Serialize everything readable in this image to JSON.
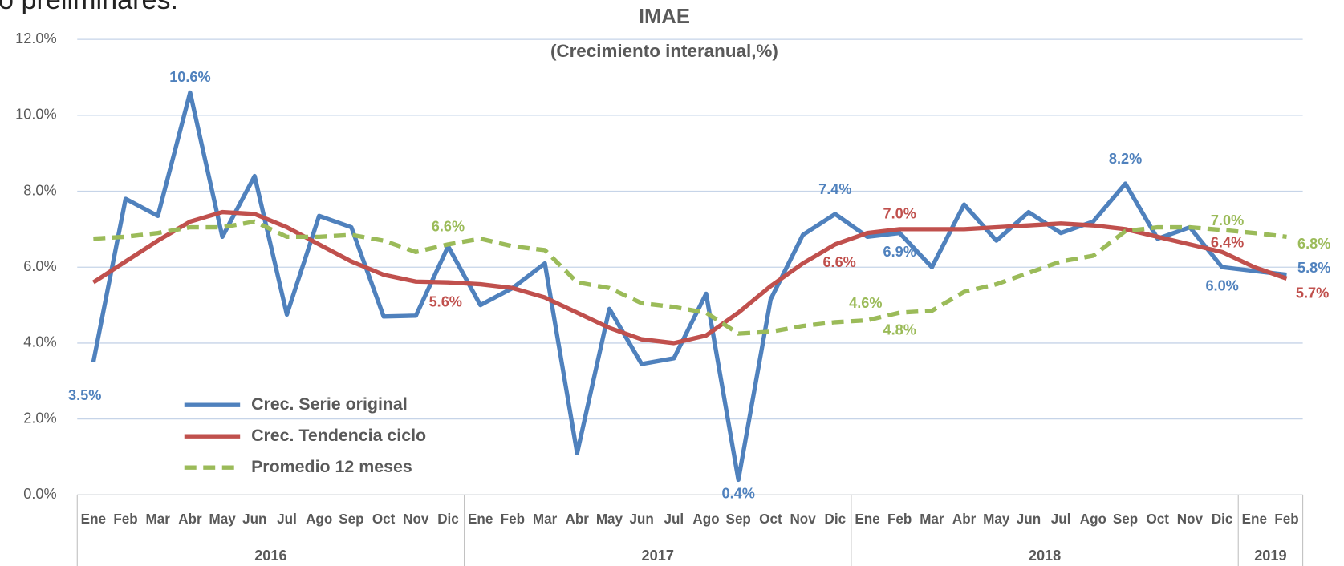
{
  "header_fragment": "o preliminares.",
  "chart_data": {
    "type": "line",
    "title": "IMAE",
    "subtitle": "(Crecimiento interanual,%)",
    "category_groups": [
      {
        "name": "2016",
        "categories": [
          "Ene",
          "Feb",
          "Mar",
          "Abr",
          "May",
          "Jun",
          "Jul",
          "Ago",
          "Sep",
          "Oct",
          "Nov",
          "Dic"
        ]
      },
      {
        "name": "2017",
        "categories": [
          "Ene",
          "Feb",
          "Mar",
          "Abr",
          "May",
          "Jun",
          "Jul",
          "Ago",
          "Sep",
          "Oct",
          "Nov",
          "Dic"
        ]
      },
      {
        "name": "2018",
        "categories": [
          "Ene",
          "Feb",
          "Mar",
          "Abr",
          "May",
          "Jun",
          "Jul",
          "Ago",
          "Sep",
          "Oct",
          "Nov",
          "Dic"
        ]
      },
      {
        "name": "2019",
        "categories": [
          "Ene",
          "Feb"
        ]
      }
    ],
    "ylim": [
      0,
      12
    ],
    "yticks": [
      {
        "value": 0,
        "label": "0.0%"
      },
      {
        "value": 2,
        "label": "2.0%"
      },
      {
        "value": 4,
        "label": "4.0%"
      },
      {
        "value": 6,
        "label": "6.0%"
      },
      {
        "value": 8,
        "label": "8.0%"
      },
      {
        "value": 10,
        "label": "10.0%"
      },
      {
        "value": 12,
        "label": "12.0%"
      }
    ],
    "grid": true,
    "legend": "lower left",
    "series": [
      {
        "name": "Crec. Serie original",
        "color": "#4f81bd",
        "style": "solid",
        "values": [
          3.5,
          7.8,
          7.35,
          10.6,
          6.8,
          8.4,
          4.75,
          7.35,
          7.05,
          4.7,
          4.72,
          6.55,
          5.0,
          5.45,
          6.1,
          1.1,
          4.9,
          3.45,
          3.6,
          5.3,
          0.4,
          5.15,
          6.85,
          7.4,
          6.8,
          6.9,
          6.0,
          7.65,
          6.7,
          7.45,
          6.9,
          7.2,
          8.2,
          6.75,
          7.05,
          6.0,
          5.9,
          5.8
        ],
        "value_labels": [
          "3.5%",
          null,
          null,
          "10.6%",
          null,
          null,
          null,
          null,
          null,
          null,
          null,
          null,
          null,
          null,
          null,
          null,
          null,
          null,
          null,
          null,
          "0.4%",
          null,
          null,
          "7.4%",
          null,
          "6.9%",
          null,
          null,
          null,
          null,
          null,
          null,
          "8.2%",
          null,
          null,
          "6.0%",
          null,
          "5.8%"
        ]
      },
      {
        "name": "Crec. Tendencia ciclo",
        "color": "#c0504d",
        "style": "solid",
        "values": [
          5.6,
          6.15,
          6.7,
          7.2,
          7.45,
          7.4,
          7.05,
          6.6,
          6.15,
          5.8,
          5.62,
          5.6,
          5.55,
          5.45,
          5.2,
          4.8,
          4.4,
          4.1,
          4.0,
          4.2,
          4.8,
          5.5,
          6.1,
          6.6,
          6.9,
          7.0,
          7.0,
          7.0,
          7.05,
          7.1,
          7.15,
          7.1,
          7.0,
          6.8,
          6.6,
          6.4,
          6.0,
          5.7
        ],
        "value_labels": [
          null,
          null,
          null,
          null,
          null,
          null,
          null,
          null,
          null,
          null,
          null,
          "5.6%",
          null,
          null,
          null,
          null,
          null,
          null,
          null,
          null,
          null,
          null,
          null,
          "6.6%",
          null,
          "7.0%",
          null,
          null,
          null,
          null,
          null,
          null,
          null,
          null,
          null,
          "6.4%",
          null,
          "5.7%"
        ]
      },
      {
        "name": "Promedio 12 meses",
        "color": "#9bbb59",
        "style": "dashed",
        "values": [
          6.75,
          6.8,
          6.9,
          7.05,
          7.05,
          7.2,
          6.8,
          6.8,
          6.85,
          6.7,
          6.4,
          6.6,
          6.75,
          6.55,
          6.45,
          5.6,
          5.45,
          5.05,
          4.95,
          4.8,
          4.25,
          4.3,
          4.45,
          4.55,
          4.6,
          4.8,
          4.85,
          5.35,
          5.55,
          5.85,
          6.15,
          6.3,
          6.95,
          7.05,
          7.05,
          6.98,
          6.9,
          6.8
        ],
        "value_labels": [
          null,
          null,
          null,
          null,
          null,
          null,
          null,
          null,
          null,
          null,
          null,
          "6.6%",
          null,
          null,
          null,
          null,
          null,
          null,
          null,
          null,
          null,
          null,
          null,
          null,
          "4.6%",
          "4.8%",
          null,
          null,
          null,
          null,
          null,
          null,
          null,
          null,
          null,
          "7.0%",
          null,
          "6.8%"
        ]
      }
    ]
  }
}
